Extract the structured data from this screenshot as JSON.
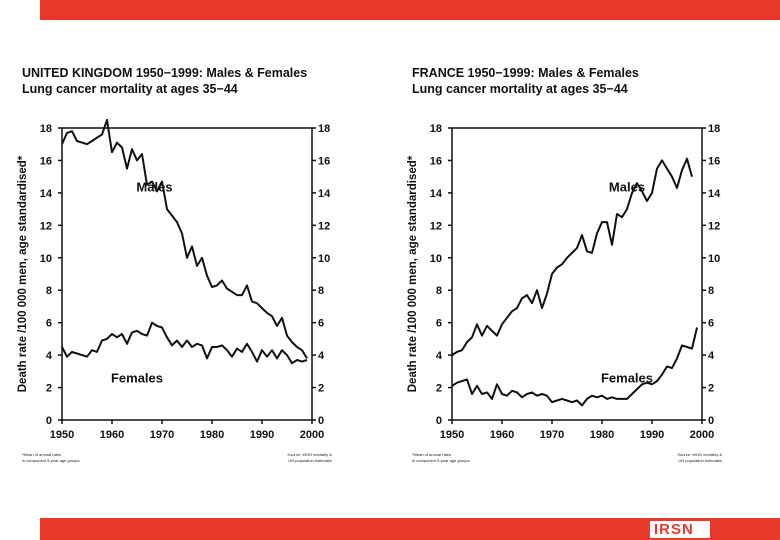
{
  "colors": {
    "accent": "#e8392b",
    "ink": "#111111",
    "logo_blue": "#2a4a9a"
  },
  "logo": {
    "text": "IRSN"
  },
  "chart_data": [
    {
      "type": "line",
      "title_line1": "UNITED KINGDOM 1950−1999: Males & Females",
      "title_line2": "Lung cancer mortality at ages 35−44",
      "ylabel": "Death rate /100 000 men, age standardised*",
      "xlim": [
        1950,
        2000
      ],
      "ylim": [
        0,
        18
      ],
      "xticks": [
        "1950",
        "1960",
        "1970",
        "1980",
        "1990",
        "2000"
      ],
      "yticks": [
        "0",
        "2",
        "4",
        "6",
        "8",
        "10",
        "12",
        "14",
        "16",
        "18"
      ],
      "footnote_left_1": "*Mean of annual rates",
      "footnote_left_2": "in component 5-year age groups",
      "footnote_right_1": "Source: WHO mortality &",
      "footnote_right_2": "UN population estimates",
      "series": [
        {
          "name": "Males",
          "label": "Males",
          "x": [
            1950,
            1951,
            1952,
            1953,
            1954,
            1955,
            1956,
            1957,
            1958,
            1959,
            1960,
            1961,
            1962,
            1963,
            1964,
            1965,
            1966,
            1967,
            1968,
            1969,
            1970,
            1971,
            1972,
            1973,
            1974,
            1975,
            1976,
            1977,
            1978,
            1979,
            1980,
            1981,
            1982,
            1983,
            1984,
            1985,
            1986,
            1987,
            1988,
            1989,
            1990,
            1991,
            1992,
            1993,
            1994,
            1995,
            1996,
            1997,
            1998,
            1999
          ],
          "values": [
            17.0,
            17.7,
            17.8,
            17.2,
            17.1,
            17.0,
            17.2,
            17.4,
            17.6,
            18.5,
            16.5,
            17.1,
            16.8,
            15.5,
            16.7,
            16.0,
            16.4,
            14.5,
            14.7,
            14.1,
            14.7,
            13.0,
            12.6,
            12.2,
            11.5,
            10.0,
            10.7,
            9.5,
            10.0,
            8.9,
            8.2,
            8.3,
            8.6,
            8.1,
            7.9,
            7.7,
            7.7,
            8.3,
            7.3,
            7.2,
            6.9,
            6.6,
            6.4,
            5.8,
            6.3,
            5.2,
            4.8,
            4.5,
            4.3,
            3.8
          ]
        },
        {
          "name": "Females",
          "label": "Females",
          "x": [
            1950,
            1951,
            1952,
            1953,
            1954,
            1955,
            1956,
            1957,
            1958,
            1959,
            1960,
            1961,
            1962,
            1963,
            1964,
            1965,
            1966,
            1967,
            1968,
            1969,
            1970,
            1971,
            1972,
            1973,
            1974,
            1975,
            1976,
            1977,
            1978,
            1979,
            1980,
            1981,
            1982,
            1983,
            1984,
            1985,
            1986,
            1987,
            1988,
            1989,
            1990,
            1991,
            1992,
            1993,
            1994,
            1995,
            1996,
            1997,
            1998,
            1999
          ],
          "values": [
            4.5,
            3.9,
            4.2,
            4.1,
            4.0,
            3.9,
            4.3,
            4.2,
            4.9,
            5.0,
            5.3,
            5.1,
            5.3,
            4.7,
            5.4,
            5.5,
            5.3,
            5.2,
            6.0,
            5.8,
            5.7,
            5.1,
            4.6,
            4.9,
            4.5,
            4.9,
            4.5,
            4.7,
            4.6,
            3.8,
            4.5,
            4.5,
            4.6,
            4.3,
            3.9,
            4.4,
            4.2,
            4.7,
            4.2,
            3.6,
            4.3,
            3.9,
            4.3,
            3.8,
            4.3,
            4.0,
            3.5,
            3.7,
            3.6,
            3.7
          ]
        }
      ],
      "annotations": [
        {
          "text": "Males",
          "x": 1968.5,
          "y": 14.1
        },
        {
          "text": "Females",
          "x": 1965,
          "y": 2.3
        }
      ]
    },
    {
      "type": "line",
      "title_line1": "FRANCE 1950−1999: Males & Females",
      "title_line2": "Lung cancer mortality at ages 35−44",
      "ylabel": "Death rate /100 000 men, age standardised*",
      "xlim": [
        1950,
        2000
      ],
      "ylim": [
        0,
        18
      ],
      "xticks": [
        "1950",
        "1960",
        "1970",
        "1980",
        "1990",
        "2000"
      ],
      "yticks": [
        "0",
        "2",
        "4",
        "6",
        "8",
        "10",
        "12",
        "14",
        "16",
        "18"
      ],
      "footnote_left_1": "*Mean of annual rates",
      "footnote_left_2": "in component 5-year age groups",
      "footnote_right_1": "Source: WHO mortality &",
      "footnote_right_2": "UN population estimates",
      "series": [
        {
          "name": "Males",
          "label": "Males",
          "x": [
            1950,
            1951,
            1952,
            1953,
            1954,
            1955,
            1956,
            1957,
            1958,
            1959,
            1960,
            1961,
            1962,
            1963,
            1964,
            1965,
            1966,
            1967,
            1968,
            1969,
            1970,
            1971,
            1972,
            1973,
            1974,
            1975,
            1976,
            1977,
            1978,
            1979,
            1980,
            1981,
            1982,
            1983,
            1984,
            1985,
            1986,
            1987,
            1988,
            1989,
            1990,
            1991,
            1992,
            1993,
            1994,
            1995,
            1996,
            1997,
            1998
          ],
          "values": [
            4.0,
            4.2,
            4.3,
            4.8,
            5.1,
            5.9,
            5.2,
            5.8,
            5.5,
            5.2,
            5.9,
            6.3,
            6.7,
            6.9,
            7.5,
            7.7,
            7.2,
            8.0,
            6.9,
            7.8,
            9.0,
            9.4,
            9.6,
            10.0,
            10.3,
            10.6,
            11.4,
            10.4,
            10.3,
            11.5,
            12.2,
            12.2,
            10.8,
            12.7,
            12.5,
            13.0,
            14.0,
            14.6,
            14.1,
            13.5,
            14.0,
            15.5,
            16.0,
            15.5,
            15.0,
            14.3,
            15.4,
            16.1,
            15.0
          ]
        },
        {
          "name": "Females",
          "label": "Females",
          "x": [
            1950,
            1951,
            1952,
            1953,
            1954,
            1955,
            1956,
            1957,
            1958,
            1959,
            1960,
            1961,
            1962,
            1963,
            1964,
            1965,
            1966,
            1967,
            1968,
            1969,
            1970,
            1971,
            1972,
            1973,
            1974,
            1975,
            1976,
            1977,
            1978,
            1979,
            1980,
            1981,
            1982,
            1983,
            1984,
            1985,
            1986,
            1987,
            1988,
            1989,
            1990,
            1991,
            1992,
            1993,
            1994,
            1995,
            1996,
            1997,
            1998,
            1999
          ],
          "values": [
            2.1,
            2.3,
            2.4,
            2.5,
            1.6,
            2.1,
            1.6,
            1.7,
            1.3,
            2.2,
            1.6,
            1.5,
            1.8,
            1.7,
            1.4,
            1.6,
            1.7,
            1.5,
            1.6,
            1.5,
            1.1,
            1.2,
            1.3,
            1.2,
            1.1,
            1.2,
            0.9,
            1.3,
            1.5,
            1.4,
            1.5,
            1.3,
            1.4,
            1.3,
            1.3,
            1.3,
            1.6,
            1.9,
            2.2,
            2.3,
            2.2,
            2.4,
            2.8,
            3.3,
            3.2,
            3.8,
            4.6,
            4.5,
            4.4,
            5.7
          ]
        }
      ],
      "annotations": [
        {
          "text": "Males",
          "x": 1985,
          "y": 14.1
        },
        {
          "text": "Females",
          "x": 1985,
          "y": 2.3
        }
      ]
    }
  ]
}
